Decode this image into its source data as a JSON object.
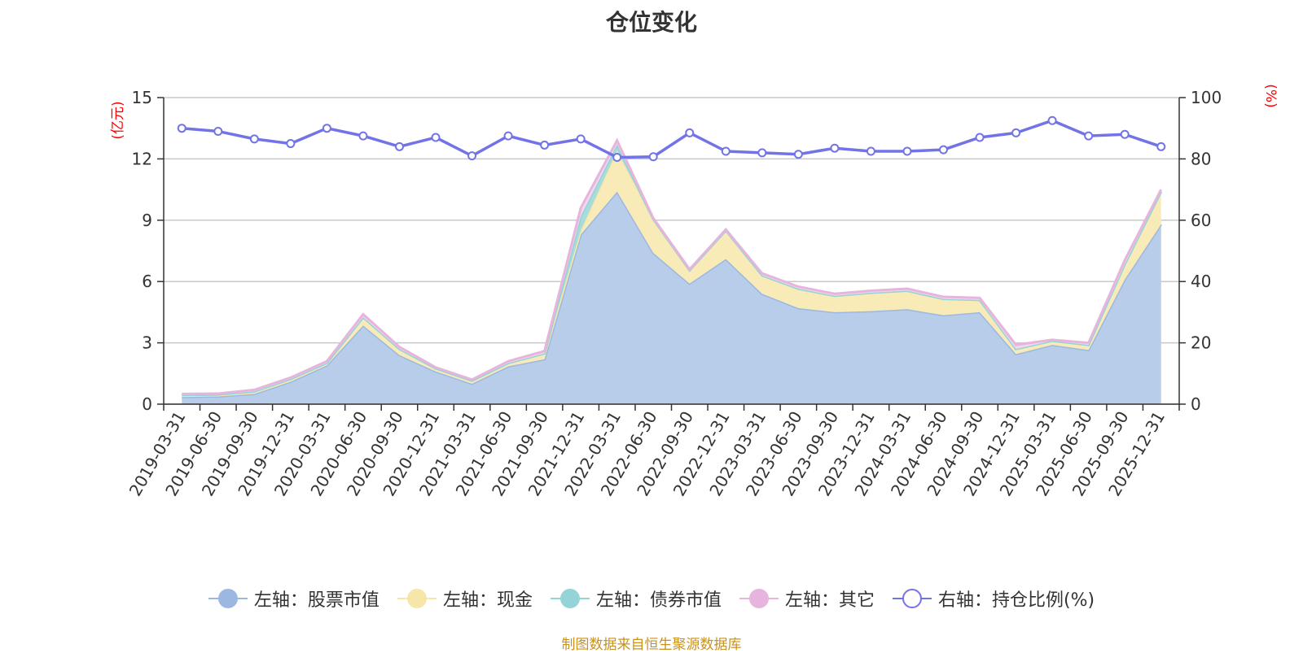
{
  "chart_data": {
    "type": "area",
    "title": "仓位变化",
    "categories": [
      "2019-03-31",
      "2019-06-30",
      "2019-09-30",
      "2019-12-31",
      "2020-03-31",
      "2020-06-30",
      "2020-09-30",
      "2020-12-31",
      "2021-03-31",
      "2021-06-30",
      "2021-09-30",
      "2021-12-31",
      "2022-03-31",
      "2022-06-30",
      "2022-09-30",
      "2022-12-31",
      "2023-03-31",
      "2023-06-30",
      "2023-09-30",
      "2023-12-31",
      "2024-03-31",
      "2024-06-30",
      "2024-09-30",
      "2024-12-31",
      "2025-03-31",
      "2025-06-30",
      "2025-09-30",
      "2025-12-31"
    ],
    "left_axis": {
      "unit": "(亿元)",
      "ticks": [
        "15",
        "12",
        "9",
        "6",
        "3",
        "0"
      ],
      "ylim": [
        0,
        15
      ],
      "color": "#ff0000"
    },
    "right_axis": {
      "unit": "(%)",
      "ticks": [
        "100",
        "80",
        "60",
        "40",
        "20",
        "0"
      ],
      "ylim": [
        0,
        100
      ],
      "color": "#ff0000"
    },
    "series": [
      {
        "name": "左轴：股票市值",
        "axis": "left",
        "kind": "area",
        "color": "#9db8e0",
        "fill": "#b7cdea",
        "values": [
          0.35,
          0.38,
          0.5,
          1.1,
          1.9,
          3.85,
          2.4,
          1.6,
          1.0,
          1.85,
          2.2,
          8.3,
          10.4,
          7.4,
          5.9,
          7.1,
          5.4,
          4.7,
          4.5,
          4.55,
          4.65,
          4.35,
          4.5,
          2.45,
          2.9,
          2.65,
          6.1,
          8.8
        ]
      },
      {
        "name": "左轴：现金",
        "axis": "left",
        "kind": "area",
        "color": "#f6e7a8",
        "fill": "#f8ebb8",
        "values": [
          0.1,
          0.09,
          0.12,
          0.13,
          0.12,
          0.4,
          0.3,
          0.15,
          0.15,
          0.16,
          0.28,
          0.2,
          2.0,
          1.65,
          0.65,
          1.4,
          0.9,
          0.95,
          0.8,
          0.9,
          0.9,
          0.8,
          0.6,
          0.25,
          0.2,
          0.25,
          0.75,
          1.6
        ]
      },
      {
        "name": "左轴：债券市值",
        "axis": "left",
        "kind": "area",
        "color": "#94d3d6",
        "fill": "#a8dcd8",
        "values": [
          0,
          0,
          0,
          0,
          0,
          0,
          0,
          0,
          0,
          0,
          0,
          0.7,
          0.3,
          0,
          0,
          0,
          0,
          0,
          0,
          0,
          0,
          0,
          0,
          0,
          0,
          0,
          0,
          0
        ]
      },
      {
        "name": "左轴：其它",
        "axis": "left",
        "kind": "area",
        "color": "#e6b4dc",
        "fill": "#f1d8ec",
        "values": [
          0.05,
          0.05,
          0.08,
          0.07,
          0.08,
          0.15,
          0.1,
          0.05,
          0.05,
          0.09,
          0.12,
          0.4,
          0.2,
          0.05,
          0.05,
          0.05,
          0.1,
          0.1,
          0.1,
          0.1,
          0.1,
          0.1,
          0.1,
          0.2,
          0.05,
          0.1,
          0.2,
          0.1
        ]
      },
      {
        "name": "右轴：持仓比例(%)",
        "axis": "right",
        "kind": "line",
        "color": "#7373e8",
        "values": [
          90,
          89,
          86.5,
          85,
          90,
          87.5,
          84,
          87,
          81,
          87.5,
          84.5,
          86.5,
          80.5,
          80.7,
          88.5,
          82.5,
          82,
          81.5,
          83.5,
          82.5,
          82.5,
          83,
          87,
          88.5,
          92.5,
          87.5,
          88,
          84
        ]
      }
    ]
  },
  "source_text": "制图数据来自恒生聚源数据库"
}
